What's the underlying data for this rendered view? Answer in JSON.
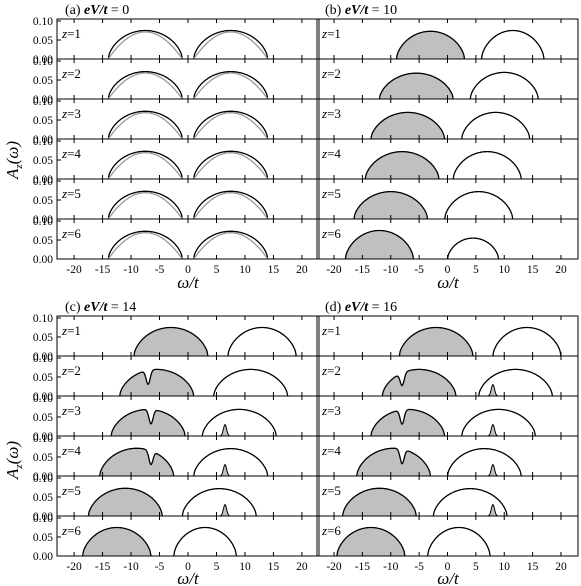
{
  "figure": {
    "x_axis_label": "ω/t",
    "y_axis_label": "A",
    "y_axis_label_subscript": "z",
    "y_axis_label_argument": "(ω)"
  },
  "chart_data": [
    {
      "type": "area",
      "panel": "(a)",
      "title_prefix": "(a) ",
      "title_var": "eV/t",
      "title_value": " = 0",
      "xlim": [
        -23,
        23
      ],
      "ylim": [
        0,
        0.1
      ],
      "x_ticks": [
        -20,
        -15,
        -10,
        -5,
        0,
        5,
        10,
        15,
        20
      ],
      "y_ticks": [
        "0.00",
        "0.05",
        "0.10"
      ],
      "layers": [
        {
          "label": "z=1",
          "lower_band": {
            "center": -7.5,
            "halfwidth": 6.5,
            "peak": 0.075,
            "filled": false
          },
          "upper_band": {
            "center": 7.5,
            "halfwidth": 6.5,
            "peak": 0.075,
            "filled": false
          }
        },
        {
          "label": "z=2",
          "lower_band": {
            "center": -7.5,
            "halfwidth": 6.5,
            "peak": 0.072,
            "filled": false
          },
          "upper_band": {
            "center": 7.5,
            "halfwidth": 6.5,
            "peak": 0.072,
            "filled": false
          }
        },
        {
          "label": "z=3",
          "lower_band": {
            "center": -7.5,
            "halfwidth": 6.5,
            "peak": 0.073,
            "filled": false
          },
          "upper_band": {
            "center": 7.5,
            "halfwidth": 6.5,
            "peak": 0.073,
            "filled": false
          }
        },
        {
          "label": "z=4",
          "lower_band": {
            "center": -7.5,
            "halfwidth": 6.5,
            "peak": 0.073,
            "filled": false
          },
          "upper_band": {
            "center": 7.5,
            "halfwidth": 6.5,
            "peak": 0.073,
            "filled": false
          }
        },
        {
          "label": "z=5",
          "lower_band": {
            "center": -7.5,
            "halfwidth": 6.5,
            "peak": 0.073,
            "filled": false
          },
          "upper_band": {
            "center": 7.5,
            "halfwidth": 6.5,
            "peak": 0.073,
            "filled": false
          }
        },
        {
          "label": "z=6",
          "lower_band": {
            "center": -7.5,
            "halfwidth": 6.5,
            "peak": 0.073,
            "filled": false
          },
          "upper_band": {
            "center": 7.5,
            "halfwidth": 6.5,
            "peak": 0.073,
            "filled": false
          }
        }
      ],
      "reference_curve_color": "#9a9a9a"
    },
    {
      "type": "area",
      "panel": "(b)",
      "title_prefix": "(b) ",
      "title_var": "eV/t",
      "title_value": " = 10",
      "xlim": [
        -23,
        23
      ],
      "ylim": [
        0,
        0.1
      ],
      "x_ticks": [
        -20,
        -15,
        -10,
        -5,
        0,
        5,
        10,
        15,
        20
      ],
      "y_ticks": [
        "0.00",
        "0.05",
        "0.10"
      ],
      "layers": [
        {
          "label": "z=1",
          "lower_band": {
            "center": -3.0,
            "halfwidth": 6.0,
            "peak": 0.073,
            "filled": true
          },
          "upper_band": {
            "center": 11.5,
            "halfwidth": 5.5,
            "peak": 0.075,
            "filled": false
          }
        },
        {
          "label": "z=2",
          "lower_band": {
            "center": -5.5,
            "halfwidth": 6.5,
            "peak": 0.068,
            "filled": true
          },
          "upper_band": {
            "center": 10.0,
            "halfwidth": 6.0,
            "peak": 0.07,
            "filled": false
          }
        },
        {
          "label": "z=3",
          "lower_band": {
            "center": -7.0,
            "halfwidth": 6.5,
            "peak": 0.07,
            "filled": true
          },
          "upper_band": {
            "center": 8.5,
            "halfwidth": 6.0,
            "peak": 0.07,
            "filled": false
          }
        },
        {
          "label": "z=4",
          "lower_band": {
            "center": -8.0,
            "halfwidth": 6.5,
            "peak": 0.072,
            "filled": true
          },
          "upper_band": {
            "center": 7.0,
            "halfwidth": 6.0,
            "peak": 0.072,
            "filled": false
          }
        },
        {
          "label": "z=5",
          "lower_band": {
            "center": -10.0,
            "halfwidth": 6.5,
            "peak": 0.072,
            "filled": true
          },
          "upper_band": {
            "center": 5.5,
            "halfwidth": 6.0,
            "peak": 0.072,
            "filled": false
          }
        },
        {
          "label": "z=6",
          "lower_band": {
            "center": -12.0,
            "halfwidth": 6.0,
            "peak": 0.075,
            "filled": true
          },
          "upper_band": {
            "center": 4.5,
            "halfwidth": 4.5,
            "peak": 0.055,
            "filled": false
          }
        }
      ]
    },
    {
      "type": "area",
      "panel": "(c)",
      "title_prefix": "(c) ",
      "title_var": "eV/t",
      "title_value": " = 14",
      "xlim": [
        -23,
        23
      ],
      "ylim": [
        0,
        0.1
      ],
      "x_ticks": [
        -20,
        -15,
        -10,
        -5,
        0,
        5,
        10,
        15,
        20
      ],
      "y_ticks": [
        "0.00",
        "0.05",
        "0.10"
      ],
      "layers": [
        {
          "label": "z=1",
          "lower_band": {
            "center": -3.0,
            "halfwidth": 6.5,
            "peak": 0.075,
            "filled": true
          },
          "upper_band": {
            "center": 13.0,
            "halfwidth": 6.0,
            "peak": 0.075,
            "filled": false
          }
        },
        {
          "label": "z=2",
          "lower_band": {
            "center": -5.5,
            "halfwidth": 6.5,
            "peak": 0.07,
            "filled": true,
            "dip_at": -7.0
          },
          "upper_band": {
            "center": 11.0,
            "halfwidth": 6.5,
            "peak": 0.07,
            "filled": false
          }
        },
        {
          "label": "z=3",
          "lower_band": {
            "center": -7.0,
            "halfwidth": 6.5,
            "peak": 0.07,
            "filled": true,
            "dip_at": -6.5
          },
          "upper_band": {
            "center": 9.0,
            "halfwidth": 6.5,
            "peak": 0.07,
            "filled": false,
            "spike_at": 6.5
          }
        },
        {
          "label": "z=4",
          "lower_band": {
            "center": -9.0,
            "halfwidth": 6.5,
            "peak": 0.073,
            "filled": true,
            "dip_at": -6.5
          },
          "upper_band": {
            "center": 7.5,
            "halfwidth": 6.5,
            "peak": 0.072,
            "filled": false,
            "spike_at": 6.5
          }
        },
        {
          "label": "z=5",
          "lower_band": {
            "center": -11.0,
            "halfwidth": 6.5,
            "peak": 0.073,
            "filled": true
          },
          "upper_band": {
            "center": 5.5,
            "halfwidth": 6.5,
            "peak": 0.072,
            "filled": false,
            "spike_at": 6.5
          }
        },
        {
          "label": "z=6",
          "lower_band": {
            "center": -12.5,
            "halfwidth": 6.0,
            "peak": 0.075,
            "filled": true
          },
          "upper_band": {
            "center": 3.0,
            "halfwidth": 5.5,
            "peak": 0.075,
            "filled": false
          }
        }
      ]
    },
    {
      "type": "area",
      "panel": "(d)",
      "title_prefix": "(d) ",
      "title_var": "eV/t",
      "title_value": " = 16",
      "xlim": [
        -23,
        23
      ],
      "ylim": [
        0,
        0.1
      ],
      "x_ticks": [
        -20,
        -15,
        -10,
        -5,
        0,
        5,
        10,
        15,
        20
      ],
      "y_ticks": [
        "0.00",
        "0.05",
        "0.10"
      ],
      "layers": [
        {
          "label": "z=1",
          "lower_band": {
            "center": -2.0,
            "halfwidth": 6.5,
            "peak": 0.075,
            "filled": true
          },
          "upper_band": {
            "center": 14.0,
            "halfwidth": 6.0,
            "peak": 0.075,
            "filled": false
          }
        },
        {
          "label": "z=2",
          "lower_band": {
            "center": -5.0,
            "halfwidth": 6.5,
            "peak": 0.07,
            "filled": true,
            "dip_at": -8.0
          },
          "upper_band": {
            "center": 12.0,
            "halfwidth": 6.5,
            "peak": 0.07,
            "filled": false,
            "spike_at": 8.0
          }
        },
        {
          "label": "z=3",
          "lower_band": {
            "center": -7.0,
            "halfwidth": 6.5,
            "peak": 0.07,
            "filled": true,
            "dip_at": -8.0
          },
          "upper_band": {
            "center": 9.0,
            "halfwidth": 6.5,
            "peak": 0.07,
            "filled": false,
            "spike_at": 8.0
          }
        },
        {
          "label": "z=4",
          "lower_band": {
            "center": -9.5,
            "halfwidth": 6.5,
            "peak": 0.073,
            "filled": true,
            "dip_at": -8.0
          },
          "upper_band": {
            "center": 6.5,
            "halfwidth": 6.5,
            "peak": 0.072,
            "filled": false,
            "spike_at": 8.0
          }
        },
        {
          "label": "z=5",
          "lower_band": {
            "center": -12.0,
            "halfwidth": 6.5,
            "peak": 0.073,
            "filled": true
          },
          "upper_band": {
            "center": 4.0,
            "halfwidth": 6.5,
            "peak": 0.072,
            "filled": false,
            "spike_at": 8.0
          }
        },
        {
          "label": "z=6",
          "lower_band": {
            "center": -13.5,
            "halfwidth": 6.0,
            "peak": 0.075,
            "filled": true
          },
          "upper_band": {
            "center": 2.0,
            "halfwidth": 5.5,
            "peak": 0.075,
            "filled": false
          }
        }
      ]
    }
  ]
}
